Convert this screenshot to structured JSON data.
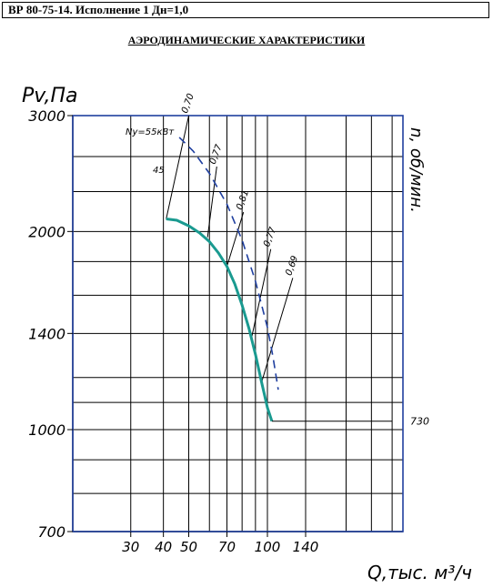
{
  "header": {
    "title": "ВР 80-75-14. Исполнение 1 Дн=1,0"
  },
  "heading": "АЭРОДИНАМИЧЕСКИЕ ХАРАКТЕРИСТИКИ",
  "chart_data": {
    "type": "line",
    "title": "АЭРОДИНАМИЧЕСКИЕ ХАРАКТЕРИСТИКИ",
    "xlabel": "Q,тыс. м³/ч",
    "ylabel": "Pv,Па",
    "right_axis_label": "n, об/мин.",
    "x_scale": "log",
    "y_scale": "log",
    "xlim": [
      18,
      330
    ],
    "ylim": [
      700,
      3000
    ],
    "x_ticks": [
      30,
      40,
      50,
      70,
      100,
      140
    ],
    "x_tick_labels": [
      "30",
      "40",
      "50",
      "70",
      "100",
      "140"
    ],
    "y_ticks": [
      700,
      1000,
      1400,
      2000,
      3000
    ],
    "y_tick_labels": [
      "700",
      "1000",
      "1400",
      "2000",
      "3000"
    ],
    "grid": true,
    "series": [
      {
        "name": "730",
        "style": "solid",
        "color": "#1a9a90",
        "x": [
          41,
          45,
          50,
          55,
          60,
          65,
          70,
          75,
          80,
          85,
          90,
          95,
          100,
          104
        ],
        "y": [
          2090,
          2080,
          2040,
          1990,
          1930,
          1855,
          1770,
          1665,
          1545,
          1425,
          1300,
          1180,
          1080,
          1030
        ]
      },
      {
        "name": "",
        "style": "dashed",
        "color": "#1f3f9f",
        "x": [
          46,
          52,
          60,
          70,
          80,
          90,
          100,
          105,
          110
        ],
        "y": [
          2780,
          2650,
          2450,
          2200,
          1940,
          1680,
          1430,
          1290,
          1150
        ]
      }
    ],
    "efficiency_lines": [
      {
        "label": "0,70",
        "x": [
          41,
          50
        ],
        "y": [
          2090,
          3000
        ]
      },
      {
        "label": "0,77",
        "x": [
          59,
          64
        ],
        "y": [
          1960,
          2510
        ]
      },
      {
        "label": "0,81",
        "x": [
          70,
          81
        ],
        "y": [
          1770,
          2140
        ]
      },
      {
        "label": "0,77",
        "x": [
          87,
          103
        ],
        "y": [
          1380,
          1880
        ]
      },
      {
        "label": "0,69",
        "x": [
          95,
          125
        ],
        "y": [
          1180,
          1700
        ]
      }
    ],
    "power_annotation": "Ny=55кВт",
    "annotation_45": "45",
    "rpm_label": "730",
    "rpm_leader": {
      "x": [
        104,
        300
      ],
      "y": [
        1030,
        1030
      ]
    }
  }
}
